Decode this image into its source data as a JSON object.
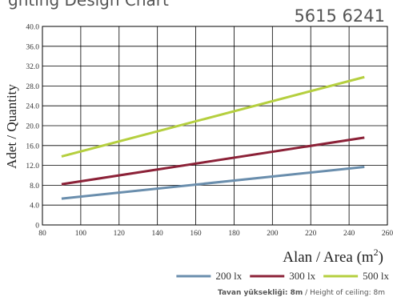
{
  "header": {
    "title": "ghting Design Chart",
    "product_code": "5615 6241"
  },
  "footnote": {
    "bold_part": "Tavan yüksekliği: 8m",
    "separator": " / ",
    "plain_part": "Height of ceiling: 8m"
  },
  "colors": {
    "grid": "#000000",
    "series": [
      "#6a8ead",
      "#8c2238",
      "#b5cf3f"
    ]
  },
  "chart_data": {
    "type": "line",
    "ylabel": "Adet / Quantity",
    "xlabel_prefix": "Alan / Area (m",
    "xlabel_sup": "2",
    "xlabel_suffix": ")",
    "xlim": [
      80,
      260
    ],
    "ylim": [
      0,
      40
    ],
    "x_ticks": [
      "80",
      "100",
      "120",
      "140",
      "160",
      "180",
      "200",
      "220",
      "240",
      "260"
    ],
    "y_ticks": [
      "0",
      "4.0",
      "8.0",
      "12.0",
      "16.0",
      "20.0",
      "24.0",
      "28.0",
      "32.0",
      "36.0",
      "40.0"
    ],
    "grid": true,
    "legend_position": "bottom-right",
    "series": [
      {
        "name": "200 lx",
        "x": [
          90,
          248
        ],
        "y": [
          5.3,
          11.7
        ]
      },
      {
        "name": "300 lx",
        "x": [
          90,
          248
        ],
        "y": [
          8.2,
          17.6
        ]
      },
      {
        "name": "500 lx",
        "x": [
          90,
          248
        ],
        "y": [
          13.8,
          29.8
        ]
      }
    ]
  }
}
